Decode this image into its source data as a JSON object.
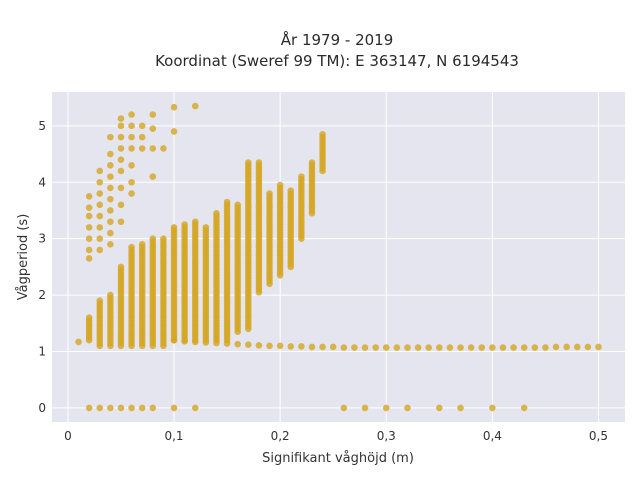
{
  "chart_data": {
    "type": "scatter",
    "title_line1": "År 1979 - 2019",
    "title_line2": "Koordinat (Sweref 99 TM): E 363147, N 6194543",
    "xlabel": "Signifikant våghöjd (m)",
    "ylabel": "Vågperiod (s)",
    "xlim": [
      -0.015,
      0.525
    ],
    "ylim": [
      -0.25,
      5.6
    ],
    "xticks": [
      0,
      0.1,
      0.2,
      0.3,
      0.4,
      0.5
    ],
    "xtick_labels": [
      "0",
      "0,1",
      "0,2",
      "0,3",
      "0,4",
      "0,5"
    ],
    "yticks": [
      0,
      1,
      2,
      3,
      4,
      5
    ],
    "ytick_labels": [
      "0",
      "1",
      "2",
      "3",
      "4",
      "5"
    ],
    "grid": true,
    "colors": {
      "marker": "#d4a520",
      "plot_bg": "#e5e5ef",
      "grid": "#ffffff"
    },
    "column_step_x": 0.01,
    "columns": [
      {
        "x": 0.01,
        "ymin": 1.17,
        "ymax": 1.2,
        "upper": []
      },
      {
        "x": 0.02,
        "ymin": 1.2,
        "ymax": 1.6,
        "upper": [
          2.65,
          2.8,
          3.0,
          3.2,
          3.4,
          3.55,
          3.75
        ],
        "zero": true
      },
      {
        "x": 0.03,
        "ymin": 1.1,
        "ymax": 1.9,
        "upper": [
          2.8,
          3.0,
          3.2,
          3.4,
          3.6,
          3.8,
          4.0,
          4.2
        ],
        "zero": true
      },
      {
        "x": 0.04,
        "ymin": 1.1,
        "ymax": 2.0,
        "upper": [
          2.9,
          3.1,
          3.3,
          3.5,
          3.7,
          3.9,
          4.1,
          4.3,
          4.5,
          4.8
        ],
        "zero": true
      },
      {
        "x": 0.05,
        "ymin": 1.1,
        "ymax": 2.5,
        "upper": [
          3.3,
          3.6,
          3.9,
          4.2,
          4.4,
          4.6,
          4.8,
          5.0,
          5.13
        ],
        "zero": true
      },
      {
        "x": 0.06,
        "ymin": 1.1,
        "ymax": 2.85,
        "upper": [
          3.8,
          4.0,
          4.3,
          4.6,
          4.8,
          5.0,
          5.2
        ],
        "zero": true
      },
      {
        "x": 0.07,
        "ymin": 1.1,
        "ymax": 2.9,
        "upper": [
          4.6,
          4.8,
          5.0
        ],
        "zero": true
      },
      {
        "x": 0.08,
        "ymin": 1.1,
        "ymax": 3.0,
        "upper": [
          4.1,
          4.6,
          4.95,
          5.2
        ],
        "zero": true
      },
      {
        "x": 0.09,
        "ymin": 1.1,
        "ymax": 3.0,
        "upper": [
          4.6
        ]
      },
      {
        "x": 0.1,
        "ymin": 1.2,
        "ymax": 3.2,
        "upper": [
          4.9,
          5.33
        ],
        "zero": true
      },
      {
        "x": 0.11,
        "ymin": 1.2,
        "ymax": 3.25,
        "upper": []
      },
      {
        "x": 0.12,
        "ymin": 1.2,
        "ymax": 3.3,
        "upper": [
          5.35
        ],
        "zero": true
      },
      {
        "x": 0.13,
        "ymin": 1.2,
        "ymax": 3.2,
        "upper": []
      },
      {
        "x": 0.14,
        "ymin": 1.2,
        "ymax": 3.45,
        "upper": []
      },
      {
        "x": 0.15,
        "ymin": 1.2,
        "ymax": 3.65,
        "upper": []
      },
      {
        "x": 0.16,
        "ymin": 1.35,
        "ymax": 3.6,
        "upper": []
      },
      {
        "x": 0.17,
        "ymin": 1.4,
        "ymax": 4.38,
        "upper": []
      },
      {
        "x": 0.18,
        "ymin": 2.05,
        "ymax": 4.38,
        "upper": []
      },
      {
        "x": 0.19,
        "ymin": 2.2,
        "ymax": 3.8,
        "upper": []
      },
      {
        "x": 0.2,
        "ymin": 2.35,
        "ymax": 3.95,
        "upper": []
      },
      {
        "x": 0.21,
        "ymin": 2.5,
        "ymax": 3.85,
        "upper": []
      },
      {
        "x": 0.22,
        "ymin": 3.0,
        "ymax": 4.1,
        "upper": []
      },
      {
        "x": 0.23,
        "ymin": 3.45,
        "ymax": 4.35,
        "upper": []
      },
      {
        "x": 0.24,
        "ymin": 4.2,
        "ymax": 4.85,
        "upper": []
      }
    ],
    "lower_band": [
      {
        "x": 0.1,
        "y": 1.2
      },
      {
        "x": 0.11,
        "y": 1.18
      },
      {
        "x": 0.12,
        "y": 1.17
      },
      {
        "x": 0.13,
        "y": 1.16
      },
      {
        "x": 0.14,
        "y": 1.15
      },
      {
        "x": 0.15,
        "y": 1.14
      },
      {
        "x": 0.16,
        "y": 1.13
      },
      {
        "x": 0.17,
        "y": 1.12
      },
      {
        "x": 0.18,
        "y": 1.11
      },
      {
        "x": 0.19,
        "y": 1.1
      },
      {
        "x": 0.2,
        "y": 1.1
      },
      {
        "x": 0.21,
        "y": 1.09
      },
      {
        "x": 0.22,
        "y": 1.09
      },
      {
        "x": 0.23,
        "y": 1.08
      },
      {
        "x": 0.24,
        "y": 1.08
      },
      {
        "x": 0.25,
        "y": 1.08
      },
      {
        "x": 0.26,
        "y": 1.07
      },
      {
        "x": 0.27,
        "y": 1.07
      },
      {
        "x": 0.28,
        "y": 1.07
      },
      {
        "x": 0.29,
        "y": 1.07
      },
      {
        "x": 0.3,
        "y": 1.07
      },
      {
        "x": 0.31,
        "y": 1.07
      },
      {
        "x": 0.32,
        "y": 1.07
      },
      {
        "x": 0.33,
        "y": 1.07
      },
      {
        "x": 0.34,
        "y": 1.07
      },
      {
        "x": 0.35,
        "y": 1.07
      },
      {
        "x": 0.36,
        "y": 1.07
      },
      {
        "x": 0.37,
        "y": 1.07
      },
      {
        "x": 0.38,
        "y": 1.07
      },
      {
        "x": 0.39,
        "y": 1.07
      },
      {
        "x": 0.4,
        "y": 1.07
      },
      {
        "x": 0.41,
        "y": 1.07
      },
      {
        "x": 0.42,
        "y": 1.07
      },
      {
        "x": 0.43,
        "y": 1.07
      },
      {
        "x": 0.44,
        "y": 1.07
      },
      {
        "x": 0.45,
        "y": 1.07
      },
      {
        "x": 0.46,
        "y": 1.08
      },
      {
        "x": 0.47,
        "y": 1.08
      },
      {
        "x": 0.48,
        "y": 1.08
      },
      {
        "x": 0.49,
        "y": 1.08
      },
      {
        "x": 0.5,
        "y": 1.08
      }
    ],
    "zero_points_x": [
      0.26,
      0.28,
      0.3,
      0.32,
      0.35,
      0.37,
      0.4,
      0.43
    ]
  }
}
